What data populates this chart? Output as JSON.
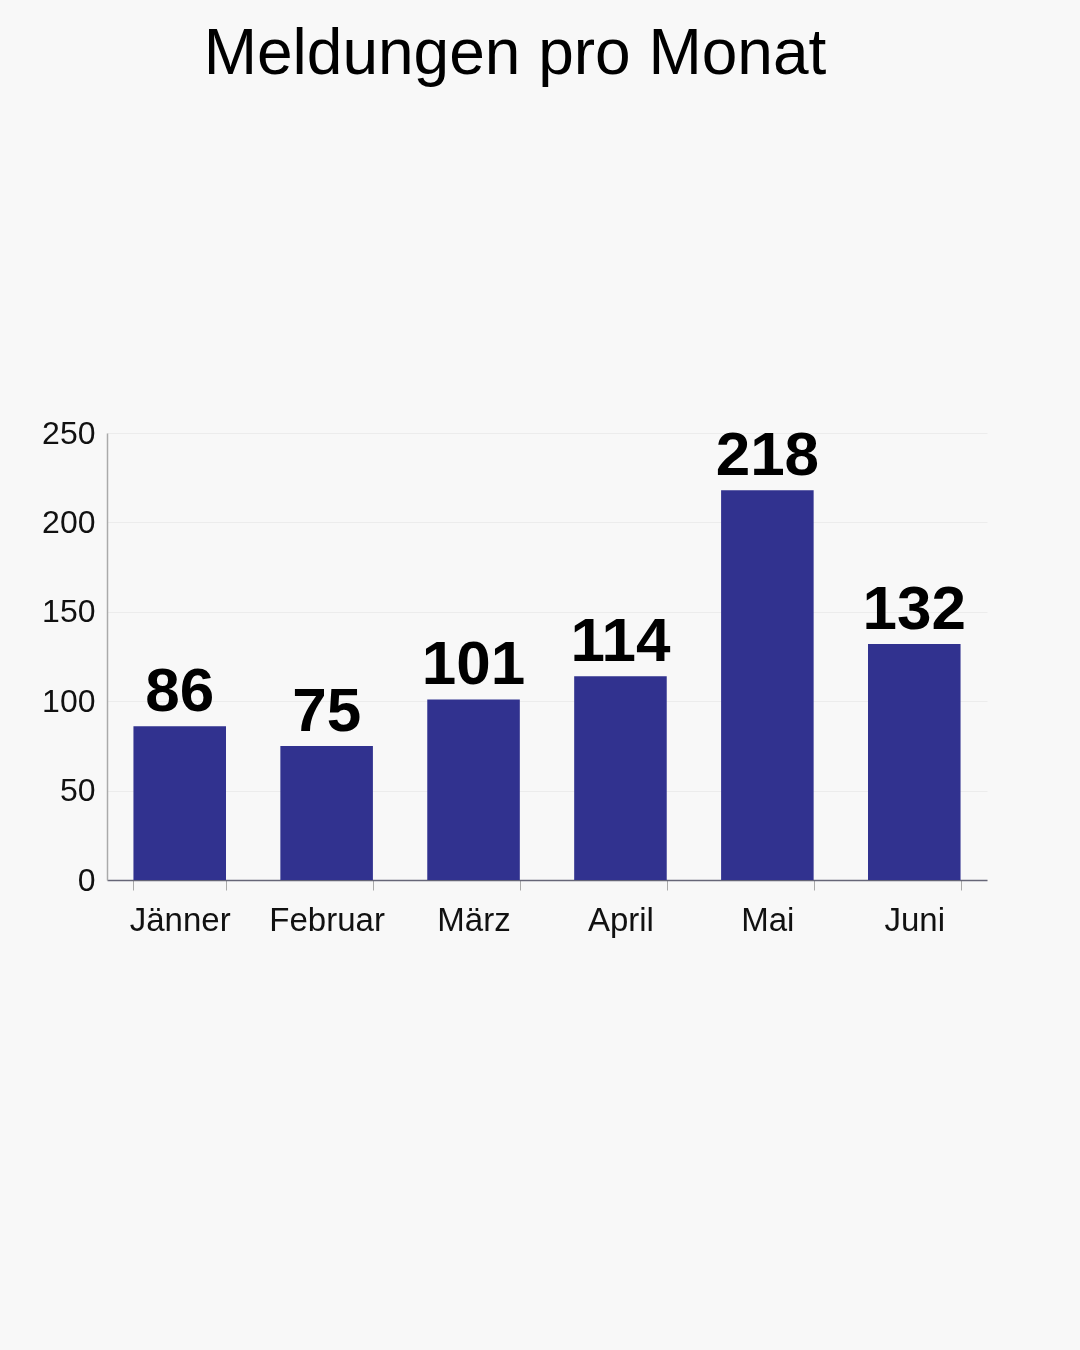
{
  "chart_data": {
    "type": "bar",
    "title": "Meldungen pro Monat",
    "categories": [
      "Jänner",
      "Februar",
      "März",
      "April",
      "Mai",
      "Juni"
    ],
    "values": [
      86,
      75,
      101,
      114,
      218,
      132
    ],
    "color": "#31328f",
    "ylim": [
      0,
      250
    ],
    "yticks": [
      0,
      50,
      100,
      150,
      200,
      250
    ],
    "grid": "y",
    "data_labels": true
  }
}
